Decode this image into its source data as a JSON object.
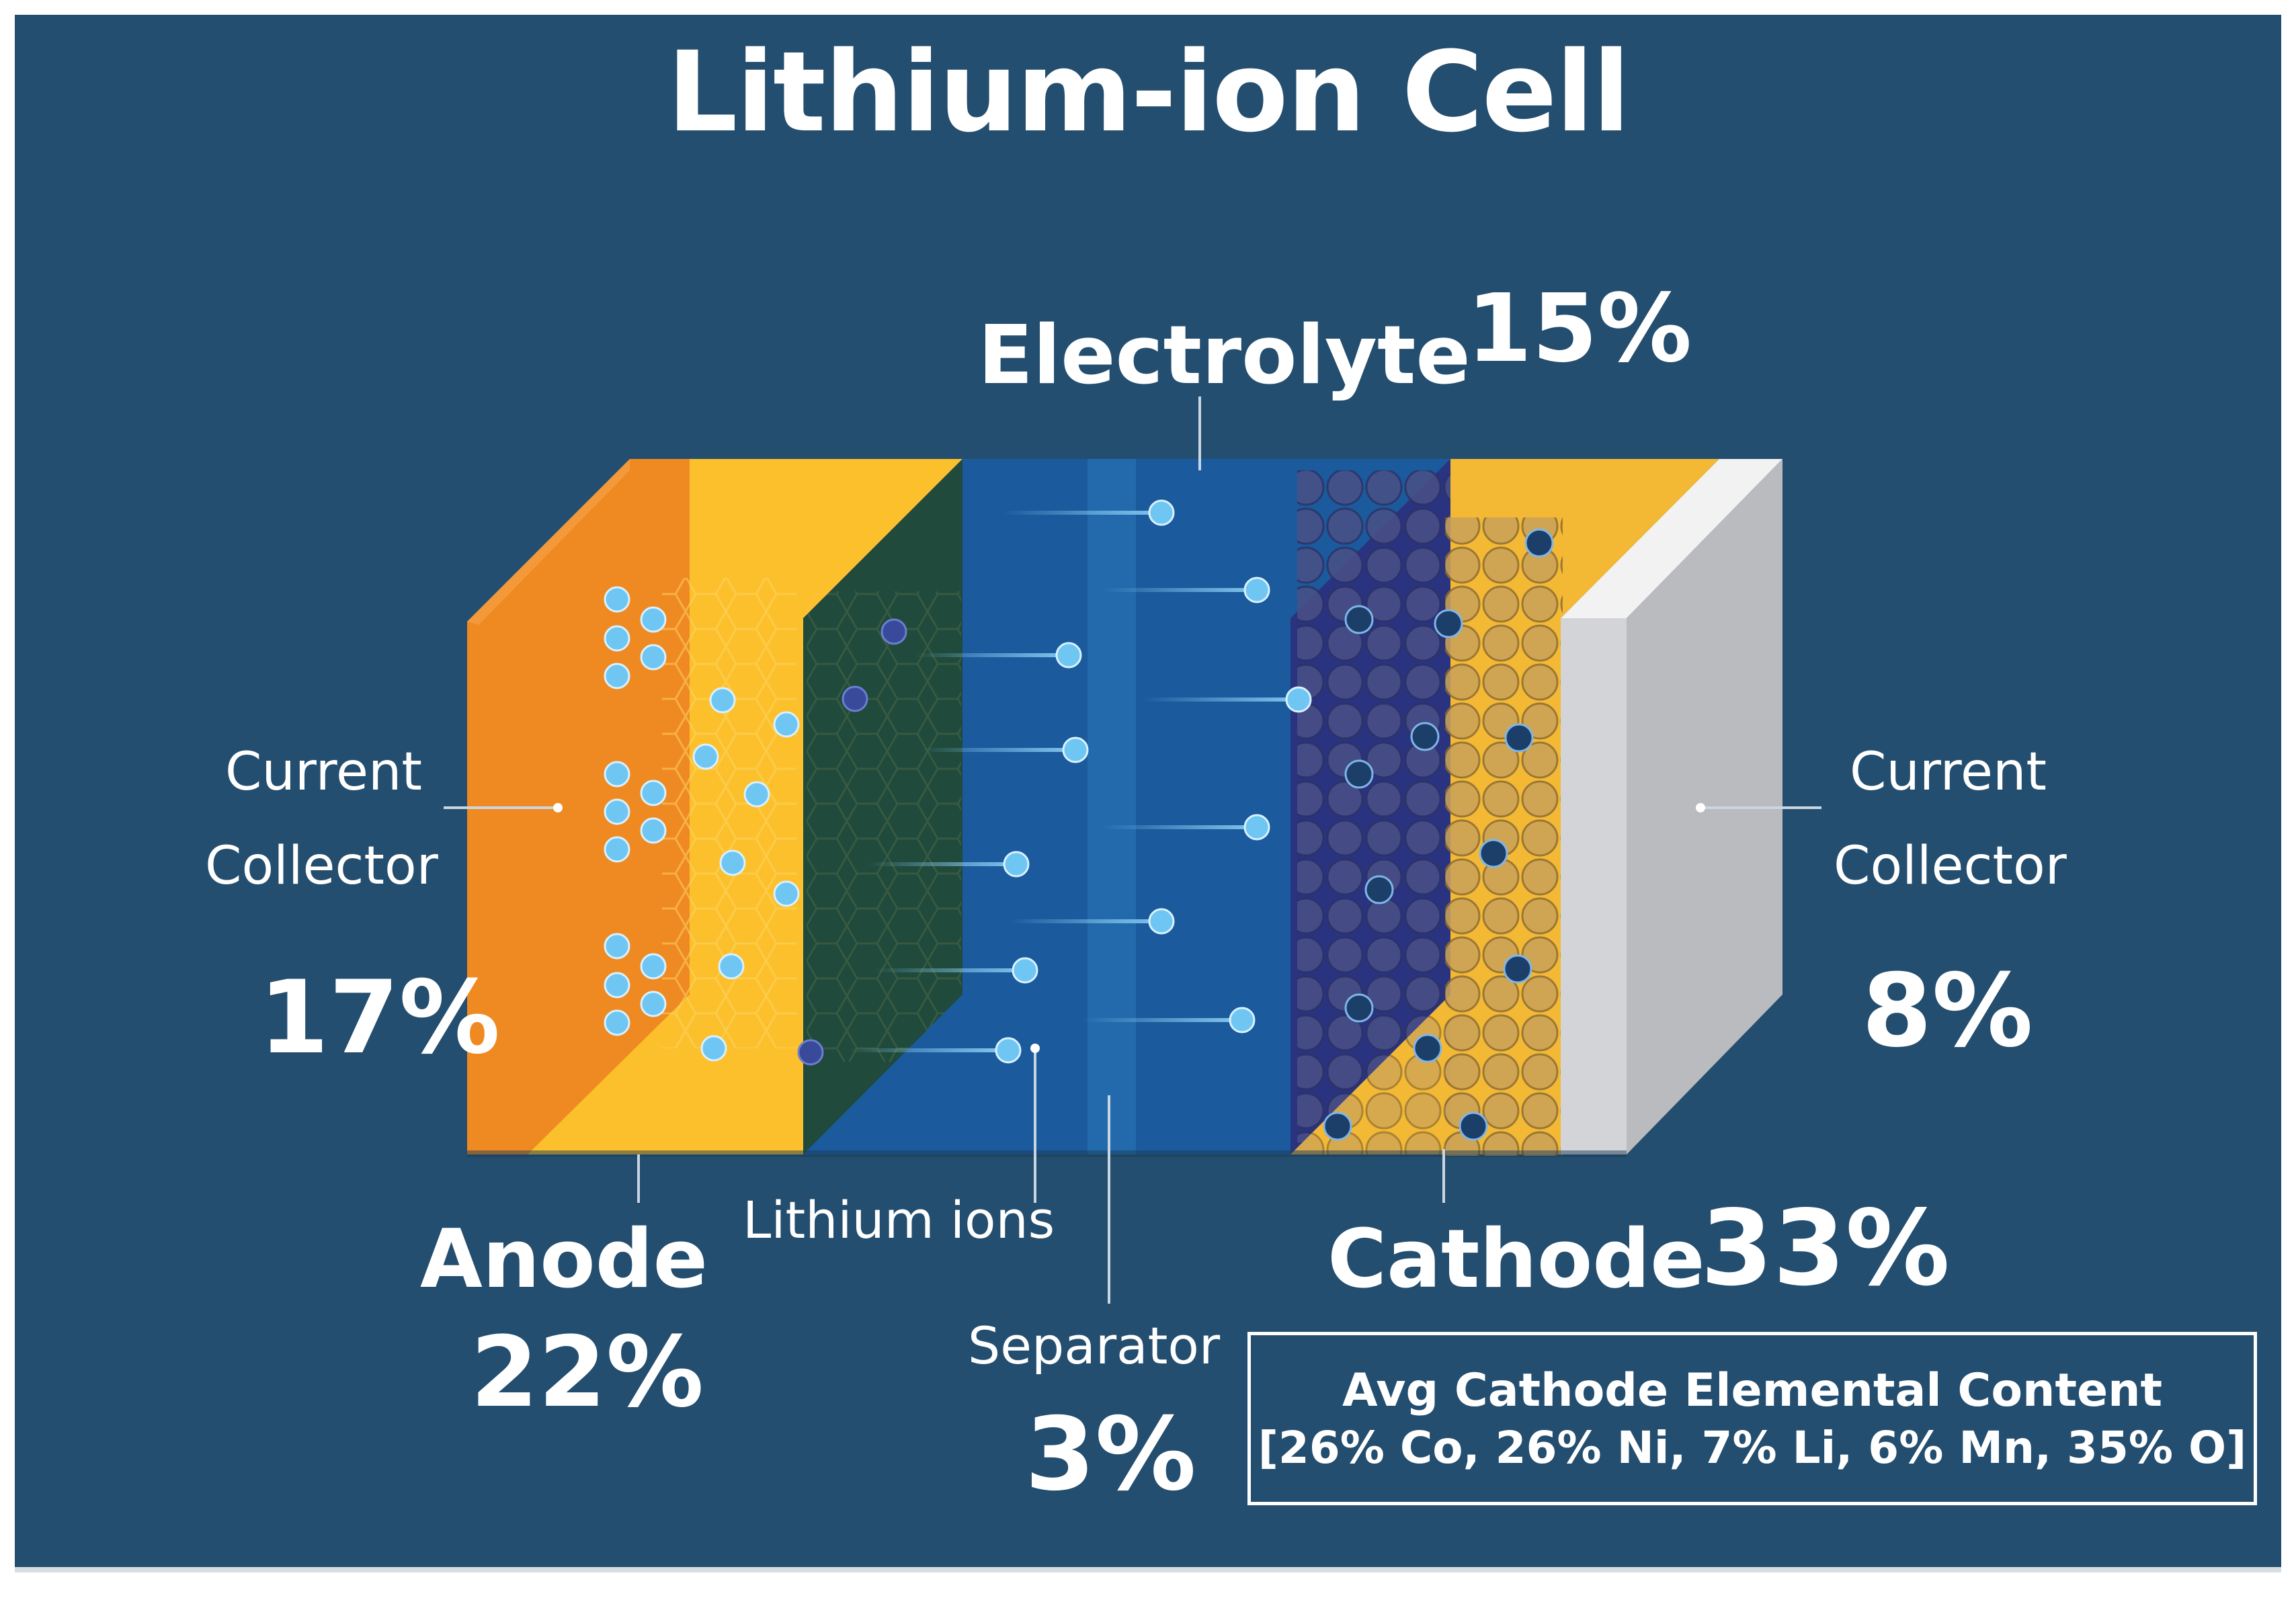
{
  "title": "Lithium-ion Cell",
  "labels": {
    "electrolyte": {
      "name": "Electrolyte",
      "percent": "15%"
    },
    "current_collector_left": {
      "line1": "Current",
      "line2": "Collector",
      "percent": "17%"
    },
    "current_collector_right": {
      "line1": "Current",
      "line2": "Collector",
      "percent": "8%"
    },
    "anode": {
      "name": "Anode",
      "percent": "22%"
    },
    "cathode": {
      "name": "Cathode",
      "percent": "33%"
    },
    "separator": {
      "name": "Separator",
      "percent": "3%"
    },
    "lithium_ions": {
      "name": "Lithium ions"
    }
  },
  "cathode_content": {
    "heading": "Avg Cathode Elemental Content",
    "detail": "[26% Co, 26% Ni, 7% Li, 6% Mn, 35% O]"
  },
  "colors": {
    "background": "#244e6f",
    "anode_collector": "#ef8a22",
    "anode": "#fcc02c",
    "electrolyte": "#1b5ea3",
    "cathode": "#f3b935",
    "cathode_collector": "#c9cbce",
    "ion": "#5bbcf0"
  }
}
